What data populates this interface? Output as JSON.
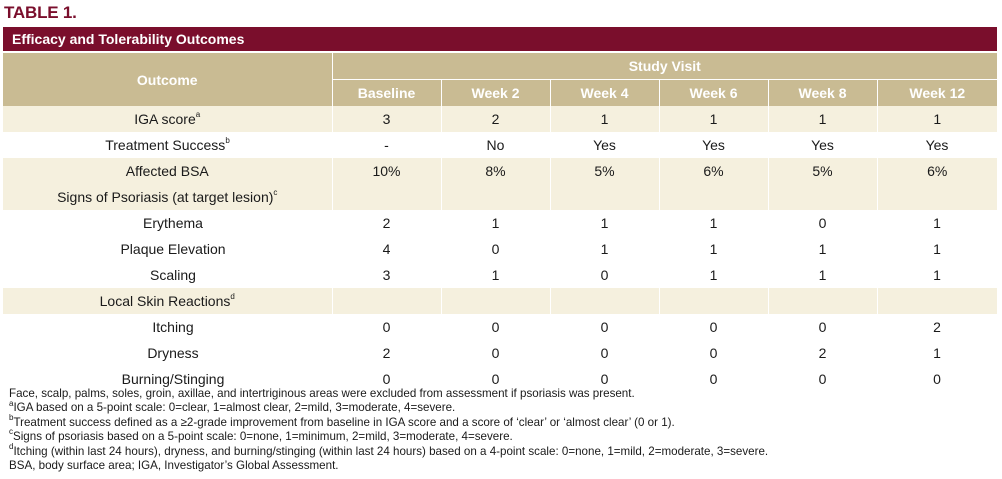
{
  "table_label": "TABLE 1.",
  "title": "Efficacy and Tolerability Outcomes",
  "header": {
    "outcome": "Outcome",
    "study_visit": "Study Visit",
    "visits": [
      "Baseline",
      "Week 2",
      "Week 4",
      "Week 6",
      "Week 8",
      "Week 12"
    ]
  },
  "rows": [
    {
      "label": "IGA score",
      "sup": "a",
      "values": [
        "3",
        "2",
        "1",
        "1",
        "1",
        "1"
      ]
    },
    {
      "label": "Treatment Success",
      "sup": "b",
      "values": [
        "-",
        "No",
        "Yes",
        "Yes",
        "Yes",
        "Yes"
      ]
    },
    {
      "label": "Affected BSA",
      "values": [
        "10%",
        "8%",
        "5%",
        "6%",
        "5%",
        "6%"
      ]
    },
    {
      "label": "Signs of Psoriasis (at target lesion)",
      "sup": "c"
    },
    {
      "label": "Erythema",
      "values": [
        "2",
        "1",
        "1",
        "1",
        "0",
        "1"
      ]
    },
    {
      "label": "Plaque Elevation",
      "values": [
        "4",
        "0",
        "1",
        "1",
        "1",
        "1"
      ]
    },
    {
      "label": "Scaling",
      "values": [
        "3",
        "1",
        "0",
        "1",
        "1",
        "1"
      ]
    },
    {
      "label": "Local Skin Reactions",
      "sup": "d"
    },
    {
      "label": "Itching",
      "values": [
        "0",
        "0",
        "0",
        "0",
        "0",
        "2"
      ]
    },
    {
      "label": "Dryness",
      "values": [
        "2",
        "0",
        "0",
        "0",
        "2",
        "1"
      ]
    },
    {
      "label": "Burning/Stinging",
      "values": [
        "0",
        "0",
        "0",
        "0",
        "0",
        "0"
      ]
    }
  ],
  "footnotes": [
    {
      "sup": "",
      "text": "Face, scalp, palms, soles, groin, axillae, and intertriginous areas were excluded from assessment if psoriasis was present."
    },
    {
      "sup": "a",
      "text": "IGA based on a 5-point scale: 0=clear, 1=almost clear, 2=mild, 3=moderate, 4=severe."
    },
    {
      "sup": "b",
      "text": "Treatment success defined as a ≥2-grade improvement from baseline in IGA score and a score of ‘clear’ or ‘almost clear’ (0 or 1)."
    },
    {
      "sup": "c",
      "text": "Signs of psoriasis based on a 5-point scale: 0=none, 1=minimum, 2=mild, 3=moderate, 4=severe."
    },
    {
      "sup": "d",
      "text": "Itching (within last 24 hours), dryness, and burning/stinging (within last 24 hours) based on a 4-point scale: 0=none, 1=mild, 2=moderate, 3=severe."
    },
    {
      "sup": "",
      "text": "BSA, body surface area; IGA, Investigator’s Global Assessment."
    }
  ],
  "colors": {
    "brand": "#7a0e2c",
    "header_fill": "#c9bb93",
    "shaded_row": "#f5f0de"
  }
}
